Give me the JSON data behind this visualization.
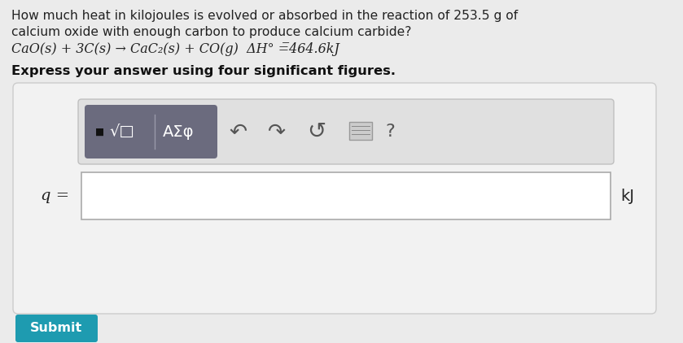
{
  "bg_color": "#ebebeb",
  "title_line1": "How much heat in kilojoules is evolved or absorbed in the reaction of 253.5 g of",
  "title_line2": "calcium oxide with enough carbon to produce calcium carbide?",
  "equation": "CaO(s) + 3C(s) → CaC₂(s) + CO(g)  ΔH° =̅464.6kJ",
  "bold_line": "Express your answer using four significant figures.",
  "input_label": "q =",
  "unit_label": "kJ",
  "submit_text": "Submit",
  "submit_bg": "#1e9bb0",
  "submit_color": "#ffffff",
  "question_mark": "?",
  "panel_bg": "#f2f2f2",
  "panel_border": "#cccccc",
  "input_box_bg": "#ffffff",
  "input_box_border": "#aaaaaa",
  "toolbar_box_bg": "#e0e0e0",
  "toolbar_box_border": "#c0c0c0",
  "dark_btn_bg": "#6b6b7e",
  "icon_color": "#555555",
  "text_color": "#222222"
}
